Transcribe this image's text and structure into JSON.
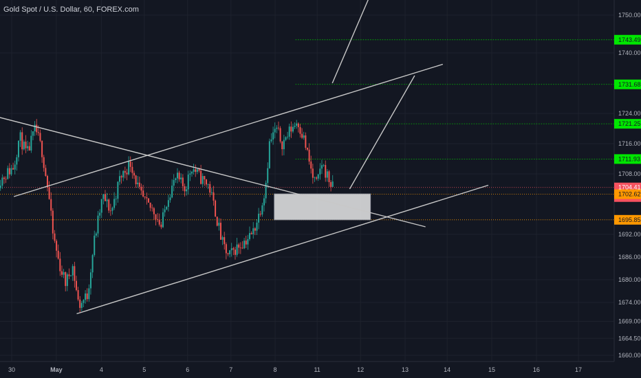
{
  "symbol_title": "Gold Spot / U.S. Dollar, 60, FOREX.com",
  "colors": {
    "background": "#131722",
    "up": "#26a69a",
    "down": "#ef5350",
    "grid": "#1e222d",
    "axis_text": "#b2b5be",
    "level_line": "#00c800",
    "level_label": "#00e600",
    "current_price": "#f7525f",
    "orange": "#ff9800",
    "trendline": "#c8c8c8",
    "zone_fill": "#e9e9e9"
  },
  "chart_data": {
    "type": "candlestick",
    "instrument": "Gold Spot / U.S. Dollar",
    "timeframe": "60",
    "source": "FOREX.com",
    "ylim": [
      1657,
      1755
    ],
    "xlim": [
      -0.3,
      17.8
    ],
    "y_ticks": [
      1660.0,
      1664.5,
      1669.0,
      1674.0,
      1680.0,
      1686.0,
      1692.0,
      1708.0,
      1716.0,
      1724.0,
      1740.0,
      1750.0
    ],
    "x_ticks": [
      {
        "x": 0,
        "label": "30"
      },
      {
        "x": 1.03,
        "label": "May"
      },
      {
        "x": 2.07,
        "label": "4"
      },
      {
        "x": 3.06,
        "label": "5"
      },
      {
        "x": 4.06,
        "label": "6"
      },
      {
        "x": 5.06,
        "label": "7"
      },
      {
        "x": 6.08,
        "label": "8"
      },
      {
        "x": 7.05,
        "label": "11"
      },
      {
        "x": 8.05,
        "label": "12"
      },
      {
        "x": 9.08,
        "label": "13"
      },
      {
        "x": 10.05,
        "label": "14"
      },
      {
        "x": 11.08,
        "label": "15"
      },
      {
        "x": 12.11,
        "label": "16"
      },
      {
        "x": 13.08,
        "label": "17"
      }
    ],
    "price_path": [
      [
        -0.3,
        1706
      ],
      [
        0.05,
        1710
      ],
      [
        0.18,
        1718
      ],
      [
        0.35,
        1713
      ],
      [
        0.55,
        1720
      ],
      [
        0.7,
        1714
      ],
      [
        0.85,
        1703
      ],
      [
        0.95,
        1692
      ],
      [
        1.1,
        1684
      ],
      [
        1.25,
        1679
      ],
      [
        1.4,
        1684
      ],
      [
        1.55,
        1673
      ],
      [
        1.75,
        1676
      ],
      [
        1.9,
        1690
      ],
      [
        2.1,
        1702
      ],
      [
        2.3,
        1698
      ],
      [
        2.5,
        1707
      ],
      [
        2.75,
        1711
      ],
      [
        2.95,
        1703
      ],
      [
        3.1,
        1700
      ],
      [
        3.3,
        1698
      ],
      [
        3.45,
        1694
      ],
      [
        3.6,
        1702
      ],
      [
        3.8,
        1707
      ],
      [
        4.0,
        1704
      ],
      [
        4.15,
        1710
      ],
      [
        4.35,
        1707
      ],
      [
        4.55,
        1705
      ],
      [
        4.7,
        1698
      ],
      [
        4.85,
        1690
      ],
      [
        5.0,
        1686
      ],
      [
        5.15,
        1688
      ],
      [
        5.35,
        1690
      ],
      [
        5.55,
        1692
      ],
      [
        5.7,
        1697
      ],
      [
        5.85,
        1704
      ],
      [
        5.95,
        1716
      ],
      [
        6.1,
        1720
      ],
      [
        6.25,
        1716
      ],
      [
        6.45,
        1720
      ],
      [
        6.6,
        1722
      ],
      [
        6.75,
        1717
      ],
      [
        6.85,
        1712
      ],
      [
        6.95,
        1707
      ],
      [
        7.05,
        1705
      ],
      [
        7.15,
        1711
      ],
      [
        7.3,
        1707
      ],
      [
        7.42,
        1704
      ]
    ],
    "horizontal_levels": [
      {
        "price": 1743.49,
        "label": "1743.49",
        "from_x": 6.55
      },
      {
        "price": 1731.68,
        "label": "1731.68",
        "from_x": 6.55
      },
      {
        "price": 1721.25,
        "label": "1721.25",
        "from_x": 6.55
      },
      {
        "price": 1711.93,
        "label": "1711.93",
        "from_x": 6.55
      }
    ],
    "current_price": {
      "price": 1704.41,
      "label": "1704.41",
      "countdown": "07:45"
    },
    "dotted_levels": [
      {
        "price": 1702.62,
        "label": "1702.62"
      },
      {
        "price": 1695.85,
        "label": "1695.85"
      }
    ],
    "trendlines": [
      {
        "from": [
          -0.3,
          1723
        ],
        "to": [
          9.55,
          1694
        ]
      },
      {
        "from": [
          0.05,
          1702
        ],
        "to": [
          9.95,
          1737
        ]
      },
      {
        "from": [
          1.5,
          1671
        ],
        "to": [
          11.0,
          1705
        ]
      },
      {
        "from": [
          7.8,
          1704
        ],
        "to": [
          9.3,
          1734
        ]
      },
      {
        "from": [
          7.4,
          1732
        ],
        "to": [
          8.3,
          1756
        ]
      }
    ],
    "zone": {
      "x0": 6.06,
      "x1": 8.28,
      "y0": 1695.85,
      "y1": 1702.7
    }
  }
}
